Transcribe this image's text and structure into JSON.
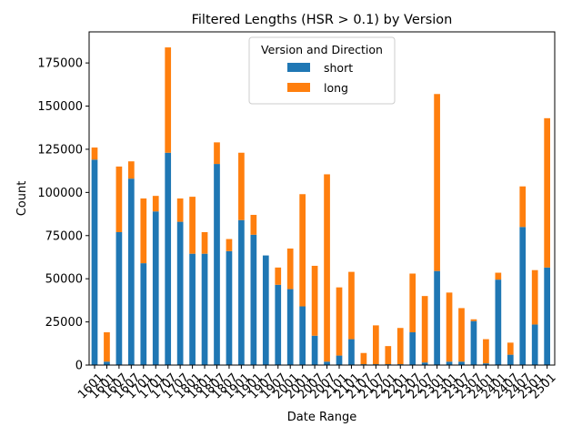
{
  "chart_data": {
    "type": "bar",
    "stacked": true,
    "title": "Filtered Lengths (HSR > 0.1) by Version",
    "xlabel": "Date Range",
    "ylabel": "Count",
    "ylim": [
      0,
      193000
    ],
    "yticks": [
      0,
      25000,
      50000,
      75000,
      100000,
      125000,
      150000,
      175000
    ],
    "ytick_labels": [
      "0",
      "25000",
      "50000",
      "75000",
      "100000",
      "125000",
      "150000",
      "175000"
    ],
    "grid": false,
    "legend": {
      "title": "Version and Direction",
      "placement": "top-center"
    },
    "categories": [
      "1601",
      "1607",
      "1701",
      "1707",
      "1801",
      "1807",
      "1901",
      "1907",
      "2001",
      "2007",
      "2101",
      "2107",
      "2201",
      "2207",
      "2301",
      "2307",
      "2401",
      "2407",
      "2501",
      "1601",
      "1607",
      "1701",
      "1707",
      "1801",
      "1807",
      "1901",
      "1907",
      "2001",
      "2007",
      "2101",
      "2107",
      "2201",
      "2207",
      "2301",
      "2307",
      "2401",
      "2407",
      "2501"
    ],
    "tick_labels_shown": [
      "1601",
      "1601",
      "1607",
      "1607",
      "1701",
      "1701",
      "1707",
      "1707",
      "1801",
      "1801",
      "1807",
      "1807",
      "1901",
      "1901",
      "1907",
      "1907",
      "2001",
      "2001",
      "2007",
      "2007",
      "2101",
      "2101",
      "2107",
      "2107",
      "2201",
      "2201",
      "2207",
      "2207",
      "2301",
      "2301",
      "2307",
      "2307",
      "2401",
      "2401",
      "2407",
      "2407",
      "2501",
      "2501"
    ],
    "series": [
      {
        "name": "short",
        "color": "#1f77b4",
        "values": [
          119000,
          2000,
          77000,
          108000,
          59000,
          89000,
          123000,
          83000,
          64500,
          64500,
          116500,
          66000,
          84000,
          75500,
          63500,
          46500,
          44000,
          34000,
          17000,
          2000,
          5500,
          15000,
          500,
          500,
          500,
          500,
          19000,
          1500,
          54500,
          2000,
          2000,
          25500,
          1000,
          49500,
          6000,
          80000,
          23500,
          56500
        ]
      },
      {
        "name": "long",
        "color": "#ff7f0e",
        "values": [
          7000,
          17000,
          38000,
          10000,
          37500,
          9000,
          61000,
          13500,
          33000,
          12500,
          12500,
          7000,
          39000,
          11500,
          0,
          10000,
          23500,
          65000,
          40500,
          108500,
          39500,
          39000,
          6500,
          22500,
          10500,
          21000,
          34000,
          38500,
          102500,
          40000,
          31000,
          1000,
          14000,
          4000,
          7000,
          23500,
          31500,
          86500
        ]
      }
    ]
  }
}
